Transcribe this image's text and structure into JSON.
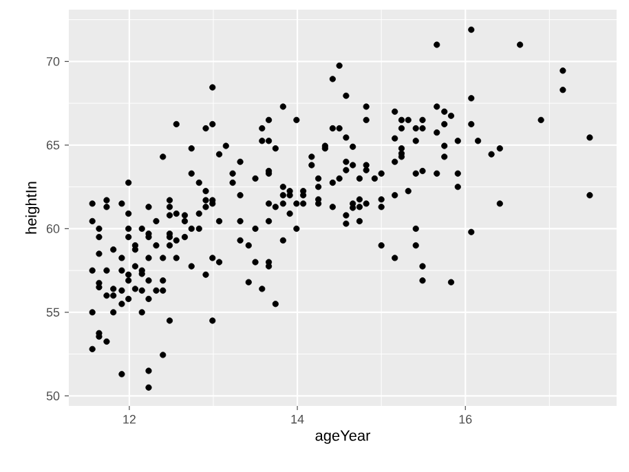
{
  "chart_data": {
    "type": "scatter",
    "xlabel": "ageYear",
    "ylabel": "heightIn",
    "xlim": [
      11.28,
      17.8
    ],
    "ylim": [
      49.4,
      73.1
    ],
    "xticks": [
      12,
      14,
      16
    ],
    "yticks": [
      50,
      55,
      60,
      65,
      70
    ],
    "grid": true,
    "marker": "circle",
    "series": [
      {
        "color": "#000000",
        "x": [
          11.56,
          11.56,
          11.56,
          11.56,
          11.56,
          11.64,
          11.64,
          11.64,
          11.64,
          11.64,
          11.64,
          11.64,
          11.73,
          11.73,
          11.73,
          11.73,
          11.73,
          11.81,
          11.81,
          11.81,
          11.81,
          11.91,
          11.91,
          11.91,
          11.91,
          11.91,
          11.91,
          11.99,
          11.99,
          11.99,
          11.99,
          11.99,
          11.99,
          11.99,
          12.07,
          12.07,
          12.07,
          12.07,
          12.15,
          12.15,
          12.15,
          12.15,
          12.15,
          12.23,
          12.23,
          12.23,
          12.23,
          12.23,
          12.23,
          12.23,
          12.23,
          12.32,
          12.32,
          12.32,
          12.4,
          12.4,
          12.4,
          12.4,
          12.4,
          12.48,
          12.48,
          12.48,
          12.48,
          12.48,
          12.48,
          12.48,
          12.56,
          12.56,
          12.56,
          12.56,
          12.66,
          12.66,
          12.66,
          12.74,
          12.74,
          12.74,
          12.74,
          12.83,
          12.83,
          12.83,
          12.91,
          12.91,
          12.91,
          12.91,
          12.91,
          12.99,
          12.99,
          12.99,
          12.99,
          12.99,
          12.99,
          13.07,
          13.07,
          13.07,
          13.15,
          13.23,
          13.23,
          13.32,
          13.32,
          13.32,
          13.32,
          13.42,
          13.42,
          13.5,
          13.5,
          13.5,
          13.58,
          13.58,
          13.58,
          13.66,
          13.66,
          13.66,
          13.66,
          13.66,
          13.66,
          13.66,
          13.66,
          13.74,
          13.74,
          13.74,
          13.83,
          13.83,
          13.83,
          13.83,
          13.83,
          13.91,
          13.91,
          13.91,
          13.99,
          13.99,
          13.99,
          14.07,
          14.07,
          14.07,
          14.17,
          14.17,
          14.25,
          14.25,
          14.25,
          14.25,
          14.33,
          14.33,
          14.42,
          14.42,
          14.42,
          14.42,
          14.5,
          14.5,
          14.5,
          14.58,
          14.58,
          14.58,
          14.58,
          14.58,
          14.58,
          14.66,
          14.66,
          14.66,
          14.66,
          14.74,
          14.74,
          14.74,
          14.74,
          14.82,
          14.82,
          14.82,
          14.82,
          14.82,
          14.92,
          15.0,
          15.0,
          15.0,
          15.0,
          15.16,
          15.16,
          15.16,
          15.16,
          15.16,
          15.24,
          15.24,
          15.24,
          15.24,
          15.24,
          15.32,
          15.32,
          15.41,
          15.41,
          15.41,
          15.41,
          15.41,
          15.49,
          15.49,
          15.49,
          15.49,
          15.49,
          15.66,
          15.66,
          15.66,
          15.66,
          15.75,
          15.75,
          15.75,
          15.75,
          15.83,
          15.83,
          15.91,
          15.91,
          15.91,
          16.07,
          16.07,
          16.07,
          16.07,
          16.15,
          16.31,
          16.41,
          16.41,
          16.65,
          16.9,
          17.16,
          17.16,
          17.48,
          17.48
        ],
        "values": [
          61.5,
          60.45,
          57.5,
          55,
          52.8,
          60,
          59.5,
          58.5,
          56.75,
          56.5,
          53.75,
          53.55,
          61.7,
          61.3,
          57.5,
          56,
          53.25,
          58.75,
          56.4,
          56,
          55,
          61.5,
          58.25,
          57.5,
          56.3,
          55.5,
          51.3,
          62.75,
          60.9,
          60,
          59.5,
          57.25,
          56.9,
          55.8,
          59,
          58.75,
          57.75,
          56.4,
          60,
          57.5,
          57.3,
          56.3,
          55,
          61.3,
          59.7,
          59.5,
          58.25,
          56.9,
          55.8,
          51.5,
          50.5,
          60.45,
          59,
          56.3,
          64.3,
          58.25,
          56.9,
          56.3,
          52.45,
          61.7,
          61.3,
          60.8,
          59.7,
          59.5,
          59,
          54.5,
          66.25,
          60.9,
          59.3,
          58.25,
          60.8,
          60.45,
          59.5,
          64.8,
          63.3,
          60,
          57.75,
          62.75,
          60.9,
          60,
          66,
          62.25,
          61.7,
          61.3,
          57.25,
          68.45,
          66.25,
          61.7,
          61.5,
          58.25,
          54.5,
          64.45,
          60.45,
          58,
          64.95,
          63.3,
          62.75,
          64,
          62,
          60.45,
          59.3,
          59,
          56.8,
          63,
          60,
          58,
          66,
          65.25,
          56.4,
          66.5,
          65.25,
          63.45,
          63.3,
          61.5,
          60.45,
          58,
          57.75,
          64.8,
          61.3,
          55.5,
          67.3,
          62.5,
          62,
          61.5,
          59.3,
          62.25,
          62,
          60.9,
          66.5,
          61.5,
          60,
          62.25,
          62,
          61.5,
          64.3,
          63.8,
          63,
          62.5,
          61.75,
          61.5,
          64.95,
          64.8,
          68.95,
          66,
          62.75,
          61.3,
          69.75,
          66,
          63,
          67.95,
          65.45,
          64,
          63.5,
          60.8,
          60.3,
          64.9,
          63.8,
          61.5,
          61.25,
          63,
          61.75,
          61.3,
          60.45,
          67.3,
          66.5,
          63.8,
          63.5,
          61.5,
          63,
          63.3,
          61.75,
          61.3,
          59,
          67,
          65.4,
          64,
          62,
          58.25,
          66.5,
          66,
          64.8,
          64.5,
          64.3,
          66.5,
          62.25,
          66,
          65.25,
          63.3,
          60,
          59,
          66.5,
          66,
          63.45,
          57.75,
          56.9,
          71,
          67.3,
          65.75,
          63.3,
          67,
          66.25,
          64.95,
          64.3,
          66.75,
          56.8,
          65.25,
          63.3,
          62.5,
          71.9,
          67.8,
          66.25,
          59.8,
          65.25,
          64.45,
          64.8,
          61.5,
          71,
          66.5,
          69.45,
          68.3,
          65.45,
          62
        ]
      }
    ]
  }
}
